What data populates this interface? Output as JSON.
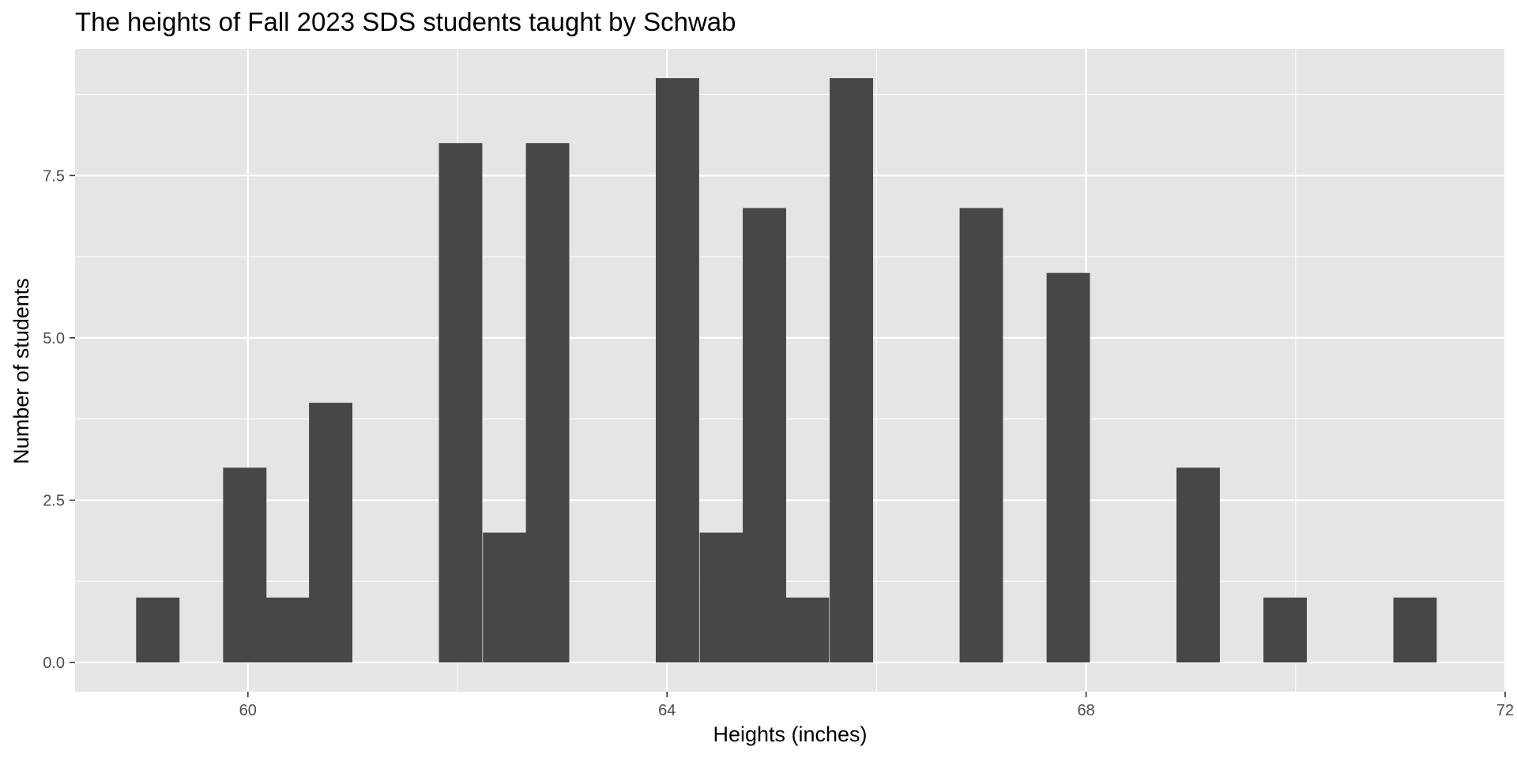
{
  "chart_data": {
    "type": "bar",
    "title": "The heights of Fall 2023 SDS students taught by Schwab",
    "xlabel": "Heights (inches)",
    "ylabel": "Number of students",
    "x_ticks": [
      60,
      64,
      68,
      72
    ],
    "x_tick_labels": [
      "60",
      "64",
      "68",
      "72"
    ],
    "y_ticks": [
      0,
      2.5,
      5,
      7.5
    ],
    "y_tick_labels": [
      "0.0",
      "2.5",
      "5.0",
      "7.5"
    ],
    "xlim": [
      58.35,
      72
    ],
    "ylim": [
      -0.45,
      9.45
    ],
    "bin_width": 0.414,
    "bins": [
      {
        "center": 59.14,
        "count": 1
      },
      {
        "center": 59.55,
        "count": 0
      },
      {
        "center": 59.97,
        "count": 3
      },
      {
        "center": 60.38,
        "count": 1
      },
      {
        "center": 60.79,
        "count": 4
      },
      {
        "center": 61.21,
        "count": 0
      },
      {
        "center": 61.62,
        "count": 0
      },
      {
        "center": 62.03,
        "count": 8
      },
      {
        "center": 62.45,
        "count": 2
      },
      {
        "center": 62.86,
        "count": 8
      },
      {
        "center": 63.28,
        "count": 0
      },
      {
        "center": 63.69,
        "count": 0
      },
      {
        "center": 64.1,
        "count": 9
      },
      {
        "center": 64.52,
        "count": 2
      },
      {
        "center": 64.93,
        "count": 7
      },
      {
        "center": 65.34,
        "count": 1
      },
      {
        "center": 65.76,
        "count": 9
      },
      {
        "center": 66.17,
        "count": 0
      },
      {
        "center": 66.59,
        "count": 0
      },
      {
        "center": 67.0,
        "count": 7
      },
      {
        "center": 67.41,
        "count": 0
      },
      {
        "center": 67.83,
        "count": 6
      },
      {
        "center": 68.24,
        "count": 0
      },
      {
        "center": 68.66,
        "count": 0
      },
      {
        "center": 69.07,
        "count": 3
      },
      {
        "center": 69.48,
        "count": 0
      },
      {
        "center": 69.9,
        "count": 1
      },
      {
        "center": 70.31,
        "count": 0
      },
      {
        "center": 70.72,
        "count": 0
      },
      {
        "center": 71.14,
        "count": 1
      }
    ],
    "grid": true,
    "colors": {
      "panel": "#e5e5e5",
      "grid_major": "#ffffff",
      "bar": "#474747",
      "tick_label": "#4d4d4d",
      "tick_mark": "#333333"
    }
  }
}
